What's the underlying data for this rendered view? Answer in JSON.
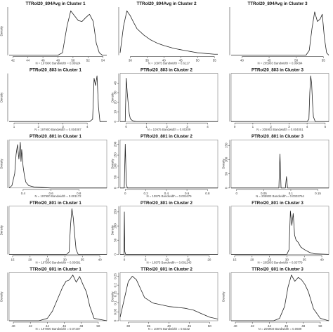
{
  "chart_data": [
    {
      "type": "line",
      "title": "TTRol20_804Avg in Cluster 1",
      "ylabel": "Density",
      "footer": "N = 197900   Bandwidth = 0.06924",
      "x_ticks": [
        42,
        44,
        46,
        48,
        50,
        52,
        54
      ],
      "y_ticks": [],
      "xlim": [
        41.5,
        54.5
      ],
      "ylim": [
        0,
        1
      ],
      "framed": false,
      "x": [
        41.5,
        46,
        48,
        48.6,
        49.2,
        49.7,
        50.2,
        50.7,
        51.2,
        51.7,
        52.2,
        52.7,
        53.1,
        53.5,
        53.9,
        54.5
      ],
      "y": [
        0,
        0,
        0,
        0.05,
        0.6,
        0.92,
        0.82,
        0.72,
        0.7,
        0.78,
        0.85,
        0.7,
        0.25,
        0.05,
        0,
        0
      ]
    },
    {
      "type": "line",
      "title": "TTRol20_804Avg in Cluster 2",
      "ylabel": "",
      "footer": "N = 10975   Bandwidth = 0.6127",
      "x_ticks": [
        30,
        35,
        40,
        45,
        50,
        55
      ],
      "y_ticks": [],
      "xlim": [
        27,
        56
      ],
      "ylim": [
        0,
        1
      ],
      "framed": false,
      "x": [
        27,
        28,
        29,
        30,
        31,
        32,
        34,
        36,
        38,
        40,
        43,
        46,
        50,
        55,
        56
      ],
      "y": [
        0.05,
        0.6,
        0.92,
        0.82,
        0.68,
        0.55,
        0.42,
        0.32,
        0.25,
        0.2,
        0.14,
        0.1,
        0.05,
        0.02,
        0.02
      ]
    },
    {
      "type": "line",
      "title": "TTRol20_804Avg in Cluster 3",
      "ylabel": "",
      "footer": "N = 205903   Bandwidth = 0.06094",
      "x_ticks": [
        40,
        45,
        50,
        55
      ],
      "y_ticks": [],
      "xlim": [
        38,
        56
      ],
      "ylim": [
        0,
        1
      ],
      "framed": false,
      "x": [
        38,
        50,
        51.8,
        52.4,
        52.9,
        53.4,
        53.9,
        54.4,
        54.8,
        55.2,
        55.6,
        56
      ],
      "y": [
        0,
        0,
        0,
        0.1,
        0.55,
        0.9,
        0.7,
        0.75,
        0.85,
        0.35,
        0.05,
        0
      ]
    },
    {
      "type": "line",
      "title": "PTRol20_803 in Cluster 1",
      "ylabel": "Density",
      "footer": "N = 197900   Bandwidth = 0.004087",
      "x_ticks": [
        1,
        2,
        3,
        4
      ],
      "y_ticks": [],
      "xlim": [
        0.8,
        4.8
      ],
      "ylim": [
        0,
        1
      ],
      "framed": false,
      "x": [
        0.8,
        4.1,
        4.22,
        4.28,
        4.34,
        4.4,
        4.46,
        4.52,
        4.8
      ],
      "y": [
        0,
        0,
        0.05,
        0.9,
        0.75,
        0.95,
        0.3,
        0,
        0
      ]
    },
    {
      "type": "line",
      "title": "PTRol20_803 in Cluster 2",
      "ylabel": "Density",
      "footer": "N = 10975   Bandwidth = 0.00209",
      "x_ticks": [
        0,
        1,
        2,
        3,
        4
      ],
      "y_ticks": [
        0,
        10,
        20,
        30,
        40
      ],
      "xlim": [
        -0.3,
        4.5
      ],
      "ylim": [
        0,
        50
      ],
      "framed": true,
      "x": [
        -0.3,
        -0.05,
        0.0,
        0.05,
        0.1,
        0.15,
        0.2,
        0.3,
        0.5,
        4.5
      ],
      "y": [
        0,
        0,
        45,
        30,
        18,
        8,
        3,
        1,
        0,
        0
      ]
    },
    {
      "type": "line",
      "title": "PTRol20_803 in Cluster 3",
      "ylabel": "",
      "footer": "N = 205903   Bandwidth = 0.004051",
      "x_ticks": [
        0,
        1,
        2,
        3,
        4,
        5
      ],
      "y_ticks": [],
      "xlim": [
        -0.2,
        5.2
      ],
      "ylim": [
        0,
        1
      ],
      "framed": true,
      "x": [
        -0.2,
        4.0,
        4.1,
        4.15,
        4.2,
        4.25,
        4.3,
        4.35,
        4.45,
        5.2
      ],
      "y": [
        0,
        0,
        0.05,
        0.6,
        0.95,
        0.8,
        0.4,
        0.1,
        0,
        0
      ]
    },
    {
      "type": "line",
      "title": "PTRol20_801 in Cluster 1",
      "ylabel": "Density",
      "footer": "N = 197900   Bandwidth = 0.001172",
      "x_ticks": [
        0.4,
        0.6,
        0.8
      ],
      "y_ticks": [],
      "xlim": [
        0.3,
        1.0
      ],
      "ylim": [
        0,
        1
      ],
      "framed": true,
      "x": [
        0.3,
        0.32,
        0.34,
        0.35,
        0.36,
        0.37,
        0.38,
        0.385,
        0.39,
        0.4,
        0.41,
        0.42,
        0.44,
        0.48,
        0.6,
        1.0
      ],
      "y": [
        0,
        0.05,
        0.3,
        0.7,
        0.9,
        0.6,
        0.95,
        0.55,
        0.8,
        0.45,
        0.25,
        0.12,
        0.05,
        0.02,
        0,
        0
      ]
    },
    {
      "type": "line",
      "title": "PTRol20_801 in Cluster 2",
      "ylabel": "Density",
      "footer": "N = 10975   Bandwidth = 0.001679",
      "x_ticks": [
        0.0,
        0.2,
        0.4,
        0.6,
        0.8
      ],
      "y_ticks": [
        0,
        50,
        100,
        150,
        200
      ],
      "xlim": [
        -0.05,
        0.9
      ],
      "ylim": [
        0,
        220
      ],
      "framed": true,
      "x": [
        -0.05,
        -0.01,
        0.0,
        0.01,
        0.02,
        0.9
      ],
      "y": [
        0,
        0,
        200,
        20,
        0,
        0
      ]
    },
    {
      "type": "line",
      "title": "PTRol20_801 in Cluster 3",
      "ylabel": "Density",
      "footer": "N = 205903   Bandwidth = 0.0003764",
      "x_ticks": [
        0.0,
        0.05,
        0.1,
        0.15
      ],
      "y_ticks": [
        0,
        50,
        100,
        150
      ],
      "xlim": [
        -0.01,
        0.17
      ],
      "ylim": [
        0,
        170
      ],
      "framed": true,
      "x": [
        -0.01,
        0.078,
        0.08,
        0.082,
        0.09,
        0.092,
        0.094,
        0.1,
        0.17
      ],
      "y": [
        0,
        0,
        120,
        0,
        0,
        40,
        0,
        0,
        0
      ]
    },
    {
      "type": "line",
      "title": "FTRol20_801 in Cluster 1",
      "ylabel": "Density",
      "footer": "N = 197900   Bandwidth = 0.03691",
      "x_ticks": [
        15,
        20,
        25,
        30,
        35,
        40
      ],
      "y_ticks": [],
      "xlim": [
        14,
        42
      ],
      "ylim": [
        0,
        1
      ],
      "framed": true,
      "x": [
        14,
        30.5,
        31.2,
        31.6,
        32,
        32.4,
        32.8,
        33.2,
        33.8,
        42
      ],
      "y": [
        0,
        0,
        0.05,
        0.6,
        0.95,
        0.75,
        0.4,
        0.1,
        0,
        0
      ]
    },
    {
      "type": "line",
      "title": "PTRol20_801 in Cluster 2",
      "ylabel": "Density",
      "footer": "N = 10975   Bandwidth = 0.001245",
      "x_ticks": [
        0,
        5,
        10,
        15,
        20
      ],
      "y_ticks": [
        0,
        50,
        100,
        150
      ],
      "xlim": [
        -1,
        22
      ],
      "ylim": [
        0,
        170
      ],
      "framed": true,
      "x": [
        -1,
        -0.1,
        0,
        0.1,
        0.3,
        22
      ],
      "y": [
        0,
        0,
        150,
        10,
        0,
        0
      ]
    },
    {
      "type": "line",
      "title": "FTRol20_801 in Cluster 3",
      "ylabel": "",
      "footer": "N = 205903   Bandwidth = 0.03779",
      "x_ticks": [
        15,
        20,
        25,
        30,
        35,
        40
      ],
      "y_ticks": [],
      "xlim": [
        14,
        42
      ],
      "ylim": [
        0,
        1
      ],
      "framed": true,
      "x": [
        14,
        30,
        30.6,
        31,
        31.4,
        31.8,
        32.2,
        32.6,
        33.2,
        34,
        35,
        36.5,
        38,
        42
      ],
      "y": [
        0,
        0,
        0.1,
        0.9,
        0.6,
        0.85,
        0.4,
        0.3,
        0.25,
        0.15,
        0.1,
        0.04,
        0.01,
        0
      ]
    },
    {
      "type": "line",
      "title": "TTRol20_801 in Cluster 1",
      "ylabel": "Density",
      "footer": "N = 197900   Bandwidth = 0.07207",
      "x_ticks": [
        40,
        42,
        44,
        46,
        48,
        50
      ],
      "y_ticks": [],
      "xlim": [
        39.5,
        51
      ],
      "ylim": [
        0,
        1
      ],
      "framed": true,
      "x": [
        39.5,
        43,
        44,
        44.6,
        45.2,
        45.8,
        46.2,
        46.6,
        47,
        47.4,
        47.8,
        48.2,
        48.6,
        49,
        49.5,
        51
      ],
      "y": [
        0,
        0,
        0.05,
        0.2,
        0.45,
        0.7,
        0.82,
        0.85,
        0.95,
        0.8,
        0.92,
        0.75,
        0.6,
        0.3,
        0.05,
        0
      ]
    },
    {
      "type": "line",
      "title": "TTRol20_801 in Cluster 2",
      "ylabel": "Density",
      "footer": "N = 10975   Bandwidth = 0.6332",
      "x_ticks": [
        30,
        35,
        40,
        45,
        50
      ],
      "y_ticks": [
        0.0,
        0.05,
        0.1,
        0.15,
        0.2,
        0.25
      ],
      "xlim": [
        28,
        52
      ],
      "ylim": [
        0,
        0.27
      ],
      "framed": true,
      "x": [
        28,
        29,
        30,
        31,
        32,
        33,
        34,
        36,
        38,
        40,
        42,
        44,
        46,
        48,
        50,
        52
      ],
      "y": [
        0.02,
        0.12,
        0.22,
        0.25,
        0.23,
        0.18,
        0.13,
        0.1,
        0.09,
        0.08,
        0.075,
        0.07,
        0.06,
        0.04,
        0.02,
        0.01
      ]
    },
    {
      "type": "line",
      "title": "TTRol20_801 in Cluster 3",
      "ylabel": "Density",
      "footer": "N = 205903   Bandwidth = 0.0689",
      "x_ticks": [
        40,
        42,
        44,
        46,
        48,
        50
      ],
      "y_ticks": [],
      "xlim": [
        39.5,
        51
      ],
      "ylim": [
        0,
        1
      ],
      "framed": true,
      "x": [
        39.5,
        44.5,
        45.2,
        45.8,
        46.2,
        46.6,
        47,
        47.4,
        47.8,
        48.2,
        48.6,
        49.2,
        50,
        51
      ],
      "y": [
        0,
        0,
        0.05,
        0.3,
        0.7,
        0.95,
        0.82,
        0.9,
        0.85,
        0.75,
        0.6,
        0.25,
        0.05,
        0
      ]
    }
  ]
}
